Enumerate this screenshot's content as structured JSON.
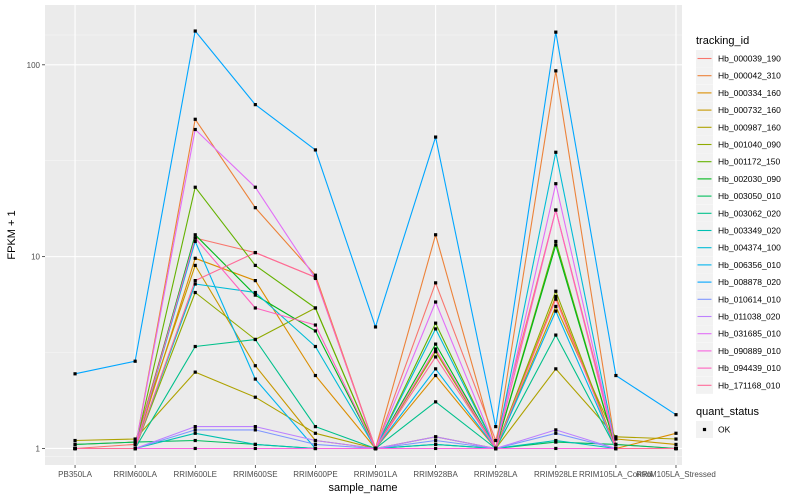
{
  "chart_data": {
    "type": "line",
    "xlabel": "sample_name",
    "ylabel": "FPKM + 1",
    "y_scale": "log10",
    "ylim": [
      0.82,
      205
    ],
    "grid": true,
    "legend_position": "right",
    "categories": [
      "PB350LA",
      "RRIM600LA",
      "RRIM600LE",
      "RRIM600SE",
      "RRIM600PE",
      "RRIM901LA",
      "RRIM928BA",
      "RRIM928LA",
      "RRIM928LE",
      "RRIM105LA_Control",
      "RRIM105LA_Stressed"
    ],
    "y_ticks": [
      1,
      10,
      100
    ],
    "y_tick_labels": [
      "1",
      "10",
      "100"
    ],
    "series": [
      {
        "name": "Hb_000039_190",
        "color": "#F8766D",
        "values": [
          1.0,
          1.05,
          12.5,
          10.5,
          7.8,
          1.0,
          7.3,
          1.1,
          17.5,
          1.05,
          1.0
        ]
      },
      {
        "name": "Hb_000042_310",
        "color": "#EC8239",
        "values": [
          1.0,
          1.0,
          52.0,
          18.0,
          8.0,
          1.0,
          13.0,
          1.0,
          93.0,
          1.0,
          1.0
        ]
      },
      {
        "name": "Hb_000334_160",
        "color": "#DB8E00",
        "values": [
          1.0,
          1.0,
          9.8,
          7.5,
          2.4,
          1.0,
          2.4,
          1.0,
          6.2,
          1.0,
          1.2
        ]
      },
      {
        "name": "Hb_000732_160",
        "color": "#C79800",
        "values": [
          1.05,
          1.08,
          9.0,
          2.7,
          1.1,
          1.0,
          3.2,
          1.0,
          5.5,
          1.12,
          1.05
        ]
      },
      {
        "name": "Hb_000987_160",
        "color": "#AEA200",
        "values": [
          1.1,
          1.12,
          2.5,
          1.85,
          1.2,
          1.0,
          1.15,
          1.0,
          2.6,
          1.15,
          1.12
        ]
      },
      {
        "name": "Hb_001040_090",
        "color": "#8FAA00",
        "values": [
          1.0,
          1.0,
          6.5,
          3.7,
          5.4,
          1.0,
          3.2,
          1.0,
          6.6,
          1.0,
          1.0
        ]
      },
      {
        "name": "Hb_001172_150",
        "color": "#64B200",
        "values": [
          1.0,
          1.0,
          23.0,
          9.0,
          5.4,
          1.0,
          4.5,
          1.0,
          12.0,
          1.0,
          1.0
        ]
      },
      {
        "name": "Hb_002030_090",
        "color": "#00B81B",
        "values": [
          1.0,
          1.0,
          13.0,
          6.3,
          4.1,
          1.0,
          3.5,
          1.0,
          11.5,
          1.0,
          1.0
        ]
      },
      {
        "name": "Hb_003050_010",
        "color": "#00BD5C",
        "values": [
          1.05,
          1.08,
          1.1,
          1.05,
          1.0,
          1.0,
          1.05,
          1.0,
          1.08,
          1.05,
          1.0
        ]
      },
      {
        "name": "Hb_003062_020",
        "color": "#00C08B",
        "values": [
          1.0,
          1.0,
          3.4,
          3.7,
          1.3,
          1.0,
          1.75,
          1.0,
          3.9,
          1.0,
          1.0
        ]
      },
      {
        "name": "Hb_003349_020",
        "color": "#00C0B2",
        "values": [
          1.0,
          1.0,
          1.2,
          1.05,
          1.0,
          1.0,
          1.05,
          1.0,
          1.1,
          1.0,
          1.0
        ]
      },
      {
        "name": "Hb_004374_100",
        "color": "#00BCD6",
        "values": [
          1.0,
          1.0,
          7.2,
          6.5,
          3.4,
          1.0,
          4.2,
          1.0,
          35.0,
          1.0,
          1.0
        ]
      },
      {
        "name": "Hb_006356_010",
        "color": "#00B5EE",
        "values": [
          1.0,
          1.0,
          12.0,
          2.3,
          1.0,
          1.0,
          2.6,
          1.0,
          5.2,
          1.0,
          1.0
        ]
      },
      {
        "name": "Hb_008878_020",
        "color": "#00A6FF",
        "values": [
          2.45,
          2.85,
          150.0,
          62.0,
          36.0,
          4.3,
          42.0,
          1.3,
          148.0,
          2.4,
          1.5
        ]
      },
      {
        "name": "Hb_010614_010",
        "color": "#7F96FF",
        "values": [
          1.0,
          1.0,
          1.25,
          1.25,
          1.05,
          1.0,
          1.1,
          1.0,
          1.2,
          1.0,
          1.0
        ]
      },
      {
        "name": "Hb_011038_020",
        "color": "#BC81FF",
        "values": [
          1.0,
          1.0,
          1.3,
          1.3,
          1.1,
          1.0,
          1.15,
          1.0,
          1.25,
          1.0,
          1.0
        ]
      },
      {
        "name": "Hb_031685_010",
        "color": "#E26EF7",
        "values": [
          1.0,
          1.0,
          46.0,
          23.0,
          7.7,
          1.0,
          5.8,
          1.0,
          24.0,
          1.0,
          1.0
        ]
      },
      {
        "name": "Hb_090889_010",
        "color": "#F863DF",
        "values": [
          1.0,
          1.0,
          1.0,
          1.0,
          1.0,
          1.0,
          1.0,
          1.0,
          1.0,
          1.0,
          1.0
        ]
      },
      {
        "name": "Hb_094439_010",
        "color": "#FF62BF",
        "values": [
          1.0,
          1.0,
          12.5,
          5.4,
          4.4,
          1.0,
          3.3,
          1.0,
          17.5,
          1.0,
          1.0
        ]
      },
      {
        "name": "Hb_171168_010",
        "color": "#FF6A98",
        "values": [
          1.0,
          1.0,
          7.5,
          10.5,
          7.8,
          1.0,
          3.0,
          1.0,
          6.0,
          1.0,
          1.0
        ]
      }
    ],
    "legend": {
      "title": "tracking_id",
      "shape_title": "quant_status",
      "shape_entries": [
        "OK"
      ]
    }
  }
}
